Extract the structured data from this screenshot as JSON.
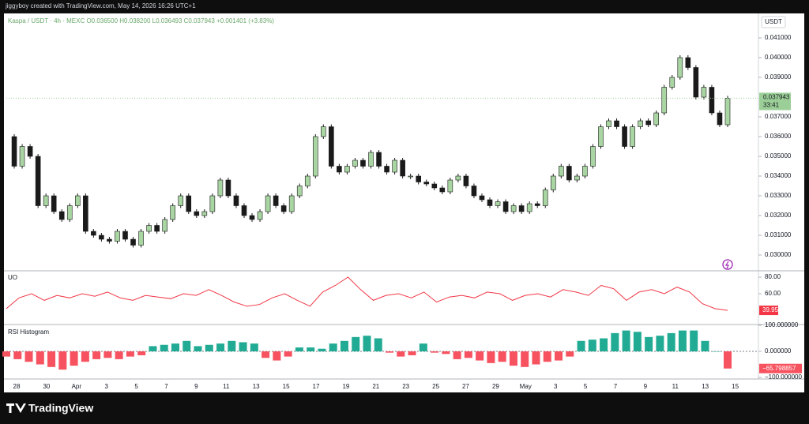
{
  "header": {
    "attribution": "jiggyboy created with TradingView.com, May 14, 2026 16:26 UTC+1"
  },
  "chart_data": [
    {
      "type": "candlestick",
      "title": "Kaspa / USDT · 4h · MEXC  O0.036500  H0.038200  L0.036493  C0.037943  +0.001401 (+3.83%)",
      "currency": "USDT",
      "up_color": "#a8d5a2",
      "down_color": "#1a1a1a",
      "values": [
        0.036,
        0.0345,
        0.0355,
        0.035,
        0.0325,
        0.033,
        0.0322,
        0.0318,
        0.0325,
        0.033,
        0.0312,
        0.031,
        0.0308,
        0.0307,
        0.0312,
        0.0308,
        0.0305,
        0.0312,
        0.0315,
        0.0312,
        0.0318,
        0.0325,
        0.033,
        0.0322,
        0.032,
        0.0322,
        0.033,
        0.0338,
        0.033,
        0.0325,
        0.032,
        0.0318,
        0.0322,
        0.033,
        0.0325,
        0.0322,
        0.033,
        0.0335,
        0.034,
        0.036,
        0.0365,
        0.0345,
        0.0342,
        0.0345,
        0.0348,
        0.0345,
        0.0352,
        0.0345,
        0.0342,
        0.0348,
        0.034,
        0.034,
        0.0337,
        0.0336,
        0.0334,
        0.0332,
        0.0338,
        0.034,
        0.0335,
        0.033,
        0.0328,
        0.0325,
        0.0327,
        0.0322,
        0.0325,
        0.0322,
        0.0326,
        0.0325,
        0.0333,
        0.034,
        0.0345,
        0.0338,
        0.034,
        0.0345,
        0.0355,
        0.0365,
        0.0368,
        0.0365,
        0.0355,
        0.0365,
        0.0368,
        0.0366,
        0.0372,
        0.0385,
        0.039,
        0.04,
        0.0395,
        0.038,
        0.0385,
        0.0372,
        0.0366,
        0.037943
      ],
      "ylim": [
        0.0292,
        0.04224
      ],
      "yticks": [
        {
          "value": 0.03,
          "label": "0.030000"
        },
        {
          "value": 0.031,
          "label": "0.031000"
        },
        {
          "value": 0.032,
          "label": "0.032000"
        },
        {
          "value": 0.033,
          "label": "0.033000"
        },
        {
          "value": 0.034,
          "label": "0.034000"
        },
        {
          "value": 0.035,
          "label": "0.035000"
        },
        {
          "value": 0.036,
          "label": "0.036000"
        },
        {
          "value": 0.037,
          "label": "0.037000"
        },
        {
          "value": 0.039,
          "label": "0.039000"
        },
        {
          "value": 0.04,
          "label": "0.040000"
        },
        {
          "value": 0.041,
          "label": "0.041000"
        }
      ],
      "last_label": "0.037943",
      "countdown": "33:41"
    },
    {
      "type": "line",
      "title": "UO",
      "color": "#f23645",
      "values": [
        42,
        55,
        60,
        52,
        58,
        55,
        60,
        57,
        62,
        55,
        52,
        58,
        56,
        54,
        60,
        58,
        65,
        58,
        50,
        45,
        47,
        55,
        60,
        52,
        45,
        62,
        70,
        80,
        65,
        52,
        58,
        60,
        55,
        62,
        50,
        56,
        58,
        55,
        62,
        60,
        52,
        58,
        60,
        56,
        65,
        62,
        58,
        70,
        66,
        52,
        62,
        65,
        60,
        68,
        62,
        48,
        42,
        39.95
      ],
      "ylim": [
        23.8,
        86.7
      ],
      "yticks": [
        {
          "value": 80,
          "label": "80.00"
        },
        {
          "value": 60,
          "label": "60.00"
        }
      ],
      "last_label": "39.95"
    },
    {
      "type": "histogram",
      "title": "RSI Histogram",
      "up_color": "#22ab94",
      "down_color": "#f7525f",
      "values": [
        -20,
        -30,
        -40,
        -50,
        -60,
        -70,
        -55,
        -40,
        -30,
        -25,
        -30,
        -20,
        -15,
        20,
        25,
        30,
        40,
        20,
        25,
        30,
        40,
        35,
        30,
        -25,
        -35,
        -20,
        15,
        15,
        10,
        30,
        40,
        55,
        60,
        50,
        -5,
        -20,
        -15,
        30,
        -5,
        -10,
        -30,
        -25,
        -35,
        -45,
        -40,
        -55,
        -60,
        -50,
        -40,
        -35,
        -20,
        40,
        45,
        50,
        70,
        80,
        75,
        55,
        60,
        70,
        80,
        80,
        40,
        0,
        -65.798857
      ],
      "ylim": [
        -106,
        103
      ],
      "yticks": [
        {
          "value": 100,
          "label": "100.000000"
        },
        {
          "value": 0,
          "label": "0.000000"
        },
        {
          "value": -100,
          "label": "−100.000000"
        }
      ],
      "last_label": "−65.798857"
    }
  ],
  "x_axis": {
    "labels": [
      "28",
      "30",
      "Apr",
      "3",
      "5",
      "7",
      "9",
      "11",
      "13",
      "15",
      "17",
      "19",
      "21",
      "23",
      "25",
      "27",
      "29",
      "May",
      "3",
      "5",
      "7",
      "9",
      "11",
      "13",
      "15"
    ]
  },
  "footer": {
    "brand": "TradingView"
  }
}
